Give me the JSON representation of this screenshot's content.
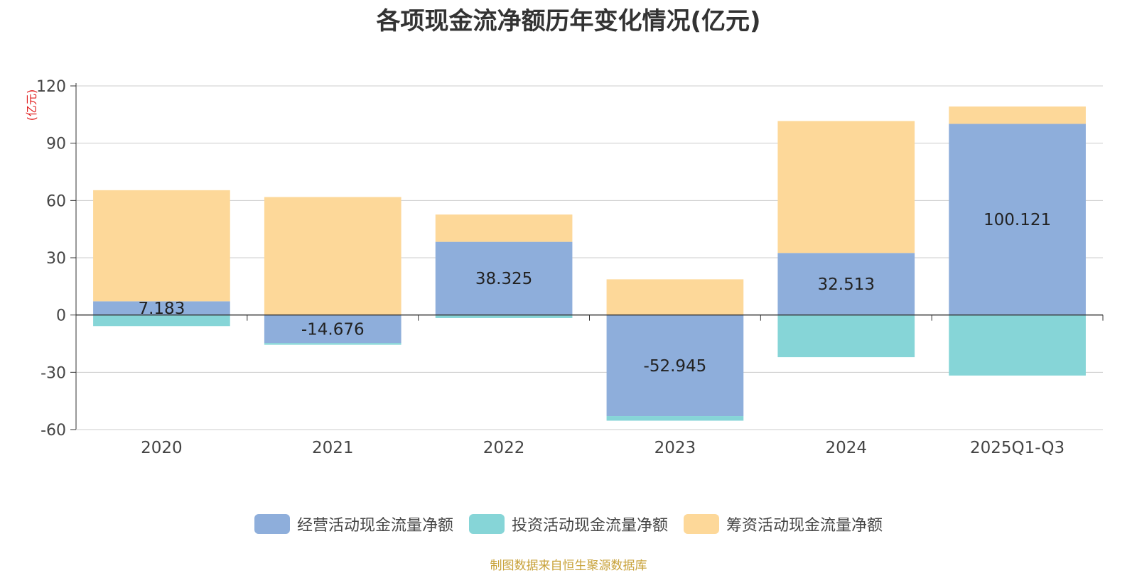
{
  "chart_data": {
    "type": "bar",
    "stacked": true,
    "title": "各项现金流净额历年变化情况(亿元)",
    "ylabel": "(亿元)",
    "xlabel": "",
    "ylim": [
      -60,
      120
    ],
    "yticks": [
      120,
      90,
      60,
      30,
      0,
      -30,
      -60
    ],
    "categories": [
      "2020",
      "2021",
      "2022",
      "2023",
      "2024",
      "2025Q1-Q3"
    ],
    "series": [
      {
        "name": "经营活动现金流量净额",
        "color": "#8eaedb",
        "values": [
          7.183,
          -14.676,
          38.325,
          -52.945,
          32.513,
          100.121
        ]
      },
      {
        "name": "投资活动现金流量净额",
        "color": "#86d5d7",
        "values": [
          -5.8,
          -0.9,
          -1.6,
          -2.4,
          -22.1,
          -31.7
        ]
      },
      {
        "name": "筹资活动现金流量净额",
        "color": "#fdd899",
        "values": [
          58.2,
          61.8,
          14.3,
          18.7,
          69.1,
          9.1
        ]
      }
    ],
    "data_labels": [
      "7.183",
      "-14.676",
      "38.325",
      "-52.945",
      "32.513",
      "100.121"
    ],
    "legend_position": "bottom",
    "grid": true
  },
  "source_note": "制图数据来自恒生聚源数据库"
}
